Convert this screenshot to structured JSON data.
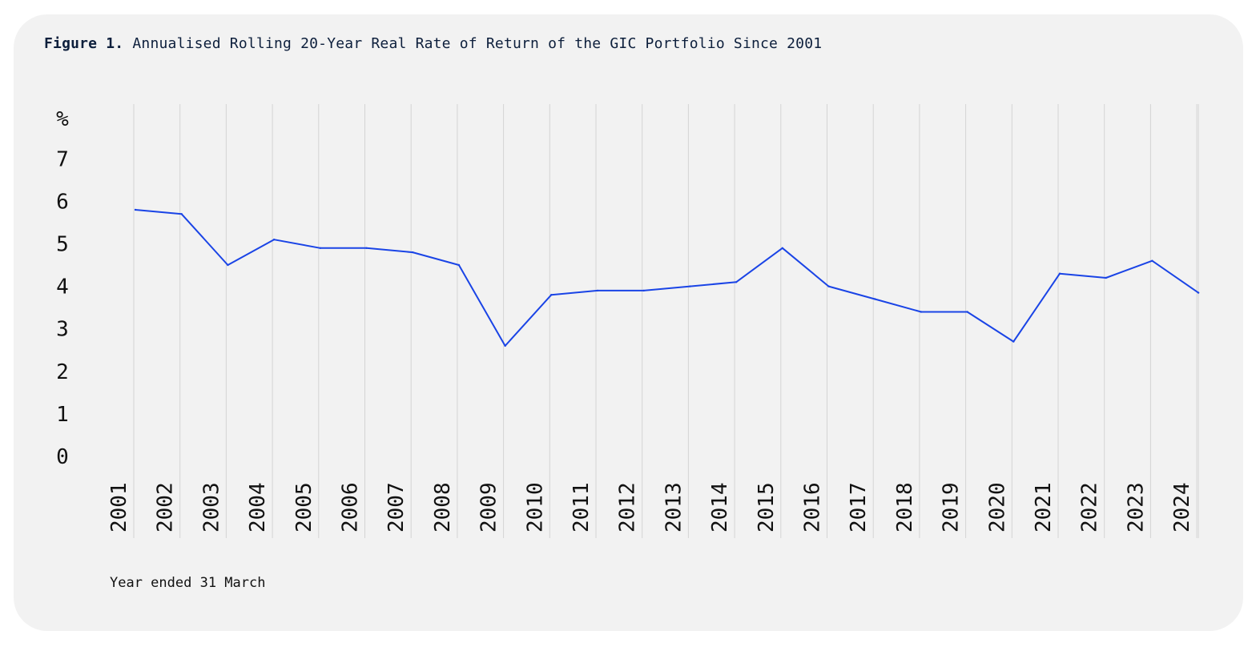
{
  "figure": {
    "label": "Figure 1.",
    "title": "Annualised Rolling 20-Year Real Rate of Return of the GIC Portfolio Since 2001"
  },
  "note": "Year ended 31 March",
  "colors": {
    "line": "#1a44e6",
    "grid": "#d4d4d4",
    "card_background": "#f2f2f2",
    "title_text": "#0d1f3c"
  },
  "chart_data": {
    "type": "line",
    "title": "Annualised Rolling 20-Year Real Rate of Return of the GIC Portfolio Since 2001",
    "xlabel": "Year ended 31 March",
    "ylabel": "%",
    "y_unit_label": "%",
    "ylim": [
      0,
      8
    ],
    "y_ticks": [
      0,
      1,
      2,
      3,
      4,
      5,
      6,
      7
    ],
    "categories": [
      "2001",
      "2002",
      "2003",
      "2004",
      "2005",
      "2006",
      "2007",
      "2008",
      "2009",
      "2010",
      "2011",
      "2012",
      "2013",
      "2014",
      "2015",
      "2016",
      "2017",
      "2018",
      "2019",
      "2020",
      "2021",
      "2022",
      "2023",
      "2024"
    ],
    "series": [
      {
        "values": [
          5.8,
          5.7,
          4.5,
          5.1,
          4.9,
          4.9,
          4.8,
          4.5,
          2.6,
          3.8,
          3.9,
          3.9,
          4.0,
          4.1,
          4.9,
          4.0,
          3.7,
          3.4,
          3.4,
          2.7,
          4.3,
          4.2,
          4.6,
          3.85
        ]
      }
    ],
    "grid": {
      "vertical": true,
      "horizontal": false
    },
    "legend": "none"
  }
}
